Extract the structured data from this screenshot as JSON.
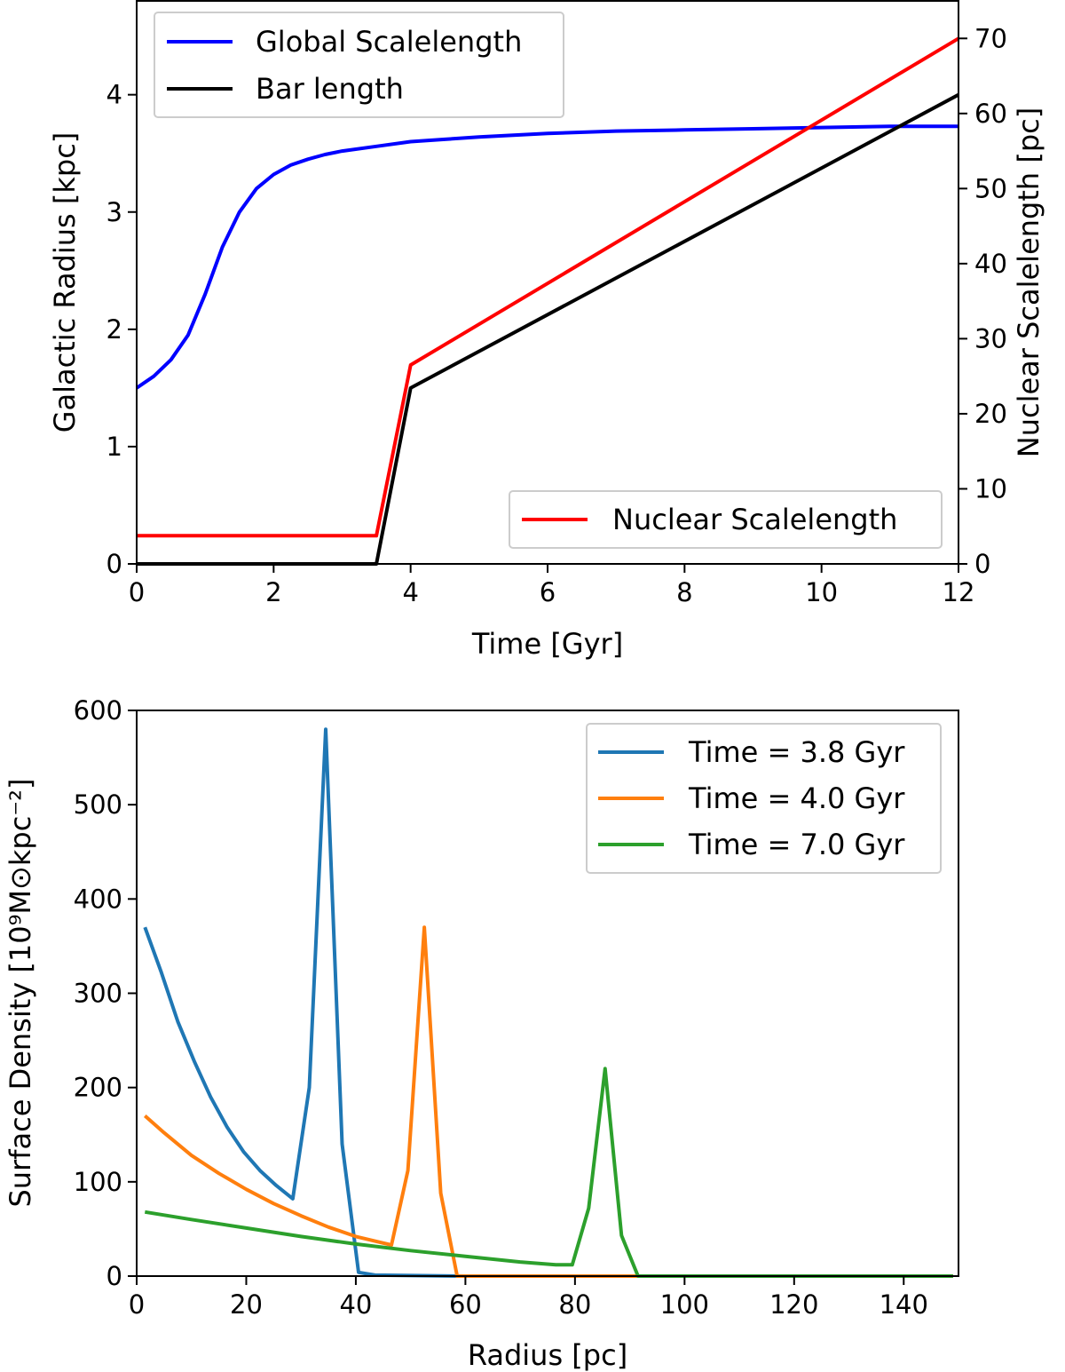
{
  "chart_data": [
    {
      "type": "line",
      "xlabel": "Time [Gyr]",
      "ylabel": "Galactic Radius [kpc]",
      "y2label": "Nuclear Scalelength [pc]",
      "xlim": [
        0,
        12
      ],
      "ylim": [
        0,
        4.8
      ],
      "y2lim": [
        0,
        75
      ],
      "xticks": [
        0,
        2,
        4,
        6,
        8,
        10,
        12
      ],
      "yticks": [
        0,
        1,
        2,
        3,
        4
      ],
      "y2ticks": [
        0,
        10,
        20,
        30,
        40,
        50,
        60,
        70
      ],
      "legend_placement": [
        "upper-left",
        "lower-right"
      ],
      "series": [
        {
          "name": "Global Scalelength",
          "axis": "left",
          "color": "#0000ff",
          "x": [
            0,
            0.25,
            0.5,
            0.75,
            1.0,
            1.25,
            1.5,
            1.75,
            2.0,
            2.25,
            2.5,
            2.75,
            3.0,
            3.5,
            4.0,
            4.5,
            5.0,
            6.0,
            7.0,
            8.0,
            9.0,
            10.0,
            11.0,
            12.0
          ],
          "y": [
            1.5,
            1.6,
            1.74,
            1.95,
            2.3,
            2.7,
            3.0,
            3.2,
            3.32,
            3.4,
            3.45,
            3.49,
            3.52,
            3.56,
            3.6,
            3.62,
            3.64,
            3.67,
            3.69,
            3.7,
            3.71,
            3.72,
            3.73,
            3.73
          ]
        },
        {
          "name": "Bar length",
          "axis": "left",
          "color": "#000000",
          "x": [
            0,
            3.5,
            4.0,
            12.0
          ],
          "y": [
            0,
            0,
            1.5,
            4.0
          ]
        },
        {
          "name": "Nuclear Scalelength",
          "axis": "right",
          "color": "#ff0000",
          "x": [
            0,
            3.5,
            4.0,
            12.0
          ],
          "y": [
            3.75,
            3.75,
            26.5,
            70
          ]
        }
      ]
    },
    {
      "type": "line",
      "xlabel": "Radius [pc]",
      "ylabel": "Surface Density [10⁹M⊙kpc⁻²]",
      "xlim": [
        0,
        150
      ],
      "ylim": [
        0,
        600
      ],
      "xticks": [
        0,
        20,
        40,
        60,
        80,
        100,
        120,
        140
      ],
      "yticks": [
        0,
        100,
        200,
        300,
        400,
        500,
        600
      ],
      "legend_placement": "upper-right",
      "series": [
        {
          "name": "Time = 3.8 Gyr",
          "color": "#1f77b4",
          "x": [
            1.5,
            4.5,
            7.5,
            10.5,
            13.5,
            16.5,
            19.5,
            22.5,
            25.5,
            28.5,
            31.5,
            34.5,
            37.5,
            40.5,
            43.5,
            60,
            80,
            100,
            120,
            149
          ],
          "y": [
            370,
            322,
            270,
            228,
            190,
            158,
            132,
            112,
            96,
            82,
            200,
            580,
            140,
            4,
            1,
            0,
            0,
            0,
            0,
            0
          ]
        },
        {
          "name": "Time = 4.0 Gyr",
          "color": "#ff7f0e",
          "x": [
            1.5,
            5,
            10,
            15,
            20,
            25,
            30,
            35,
            40,
            46.5,
            49.5,
            52.5,
            55.5,
            58.5,
            61.5,
            80,
            100,
            120,
            149
          ],
          "y": [
            170,
            152,
            128,
            109,
            92,
            77,
            64,
            52,
            42,
            33,
            112,
            370,
            88,
            0,
            0,
            0,
            0,
            0,
            0
          ]
        },
        {
          "name": "Time = 7.0 Gyr",
          "color": "#2ca02c",
          "x": [
            1.5,
            10,
            20,
            30,
            40,
            50,
            60,
            70,
            76.5,
            79.5,
            82.5,
            85.5,
            88.5,
            91.5,
            94.5,
            110,
            130,
            149
          ],
          "y": [
            68,
            60,
            51,
            42,
            34,
            27,
            21,
            15,
            12,
            12,
            72,
            220,
            43,
            0,
            0,
            0,
            0,
            0
          ]
        }
      ]
    }
  ]
}
